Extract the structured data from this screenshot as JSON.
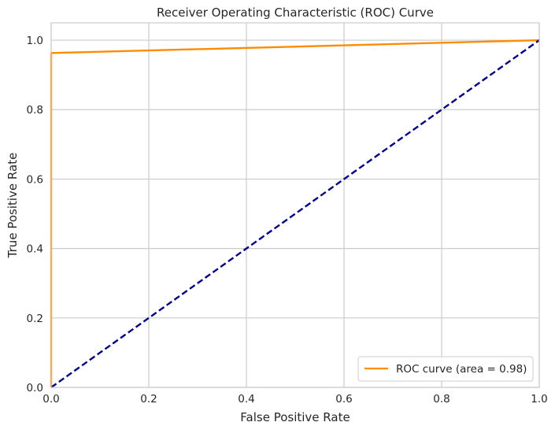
{
  "chart_data": {
    "type": "line",
    "title": "Receiver Operating Characteristic (ROC) Curve",
    "xlabel": "False Positive Rate",
    "ylabel": "True Positive Rate",
    "xlim": [
      0.0,
      1.0
    ],
    "ylim": [
      0.0,
      1.05
    ],
    "x_ticks": [
      0.0,
      0.2,
      0.4,
      0.6,
      0.8,
      1.0
    ],
    "y_ticks": [
      0.0,
      0.2,
      0.4,
      0.6,
      0.8,
      1.0
    ],
    "x_tick_labels": [
      "0.0",
      "0.2",
      "0.4",
      "0.6",
      "0.8",
      "1.0"
    ],
    "y_tick_labels": [
      "0.0",
      "0.2",
      "0.4",
      "0.6",
      "0.8",
      "1.0"
    ],
    "grid": true,
    "legend_position": "lower-right",
    "series": [
      {
        "name": "ROC curve (area = 0.98)",
        "color": "#ff8c00",
        "style": "solid",
        "x": [
          0.0,
          0.0,
          0.0,
          1.0
        ],
        "y": [
          0.0,
          0.0,
          0.963,
          1.0
        ]
      },
      {
        "color": "#000080",
        "style": "dashed",
        "x": [
          0.0,
          1.0
        ],
        "y": [
          0.0,
          1.0
        ]
      }
    ]
  }
}
